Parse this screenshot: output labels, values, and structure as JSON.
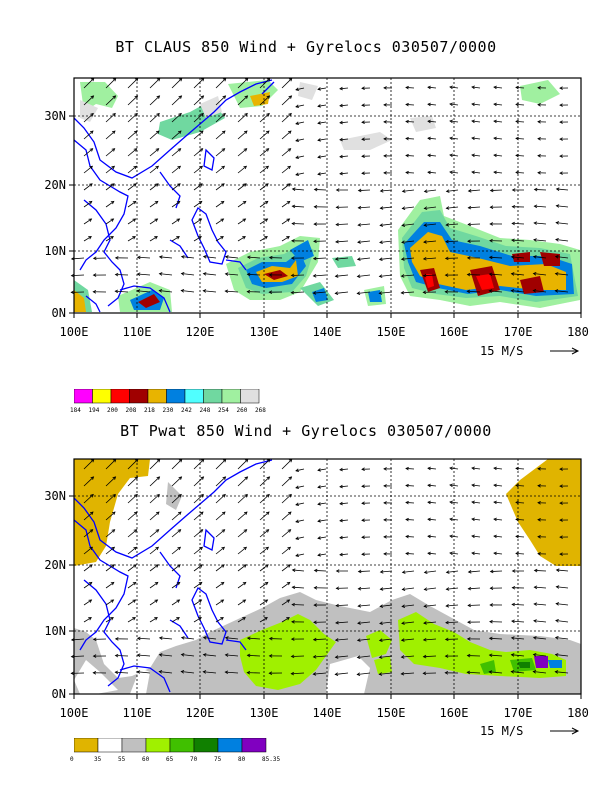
{
  "panels": [
    {
      "title": "BT CLAUS 850 Wind + Gyrelocs 030507/0000",
      "lon_labels": [
        "100E",
        "110E",
        "120E",
        "130E",
        "140E",
        "150E",
        "160E",
        "170E",
        "180"
      ],
      "lat_labels": [
        "0N",
        "10N",
        "20N",
        "30N"
      ],
      "reference_vector": "15 M/S",
      "colorbar": {
        "labels": [
          "184",
          "194",
          "200",
          "208",
          "218",
          "230",
          "242",
          "248",
          "254",
          "260",
          "268"
        ],
        "colors": [
          "#ff00ff",
          "#ffff00",
          "#ff0000",
          "#a00000",
          "#e8b400",
          "#0080e0",
          "#50ffff",
          "#70d8a0",
          "#a0f0a0",
          "#e0e0e0"
        ]
      }
    },
    {
      "title": "BT Pwat 850 Wind + Gyrelocs 030507/0000",
      "lon_labels": [
        "100E",
        "110E",
        "120E",
        "130E",
        "140E",
        "150E",
        "160E",
        "170E",
        "180"
      ],
      "lat_labels": [
        "0N",
        "10N",
        "20N",
        "30N"
      ],
      "reference_vector": "15 M/S",
      "colorbar": {
        "labels": [
          "0",
          "35",
          "55",
          "60",
          "65",
          "70",
          "75",
          "80",
          "85.35"
        ],
        "colors": [
          "#e0b400",
          "#ffffff",
          "#c0c0c0",
          "#a0f000",
          "#40c000",
          "#108000",
          "#0080e0",
          "#8000c0"
        ]
      }
    }
  ],
  "colors": {
    "coast": "#0000ff",
    "grid": "#000000"
  }
}
